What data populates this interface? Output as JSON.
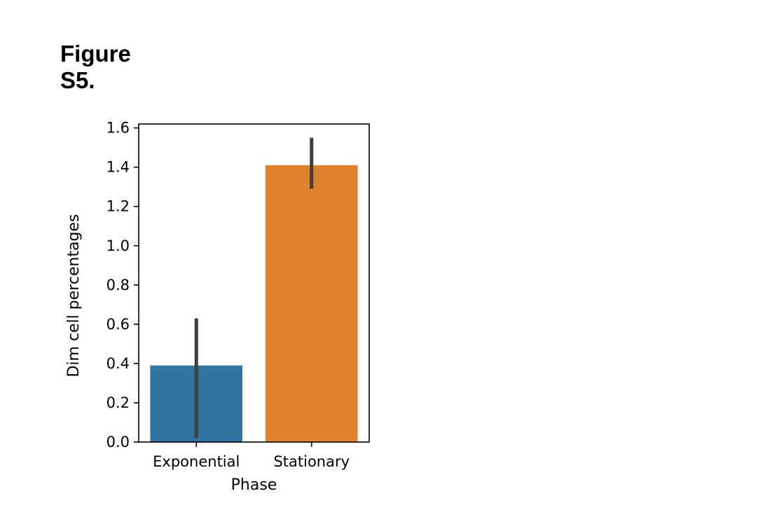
{
  "figure_label": {
    "line1": "Figure",
    "line2": "S5."
  },
  "chart_data": {
    "type": "bar",
    "categories": [
      "Exponential",
      "Stationary"
    ],
    "values": [
      0.39,
      1.41
    ],
    "error_bars": [
      [
        0.02,
        0.63
      ],
      [
        1.29,
        1.55
      ]
    ],
    "colors": [
      "#3274a1",
      "#e1812c"
    ],
    "error_bar_color": "#3f3f3f",
    "xlabel": "Phase",
    "ylabel": "Dim cell percentages",
    "ylim": [
      0.0,
      1.62
    ],
    "yticks": [
      "0.0",
      "0.2",
      "0.4",
      "0.6",
      "0.8",
      "1.0",
      "1.2",
      "1.4",
      "1.6"
    ],
    "grid": false
  }
}
